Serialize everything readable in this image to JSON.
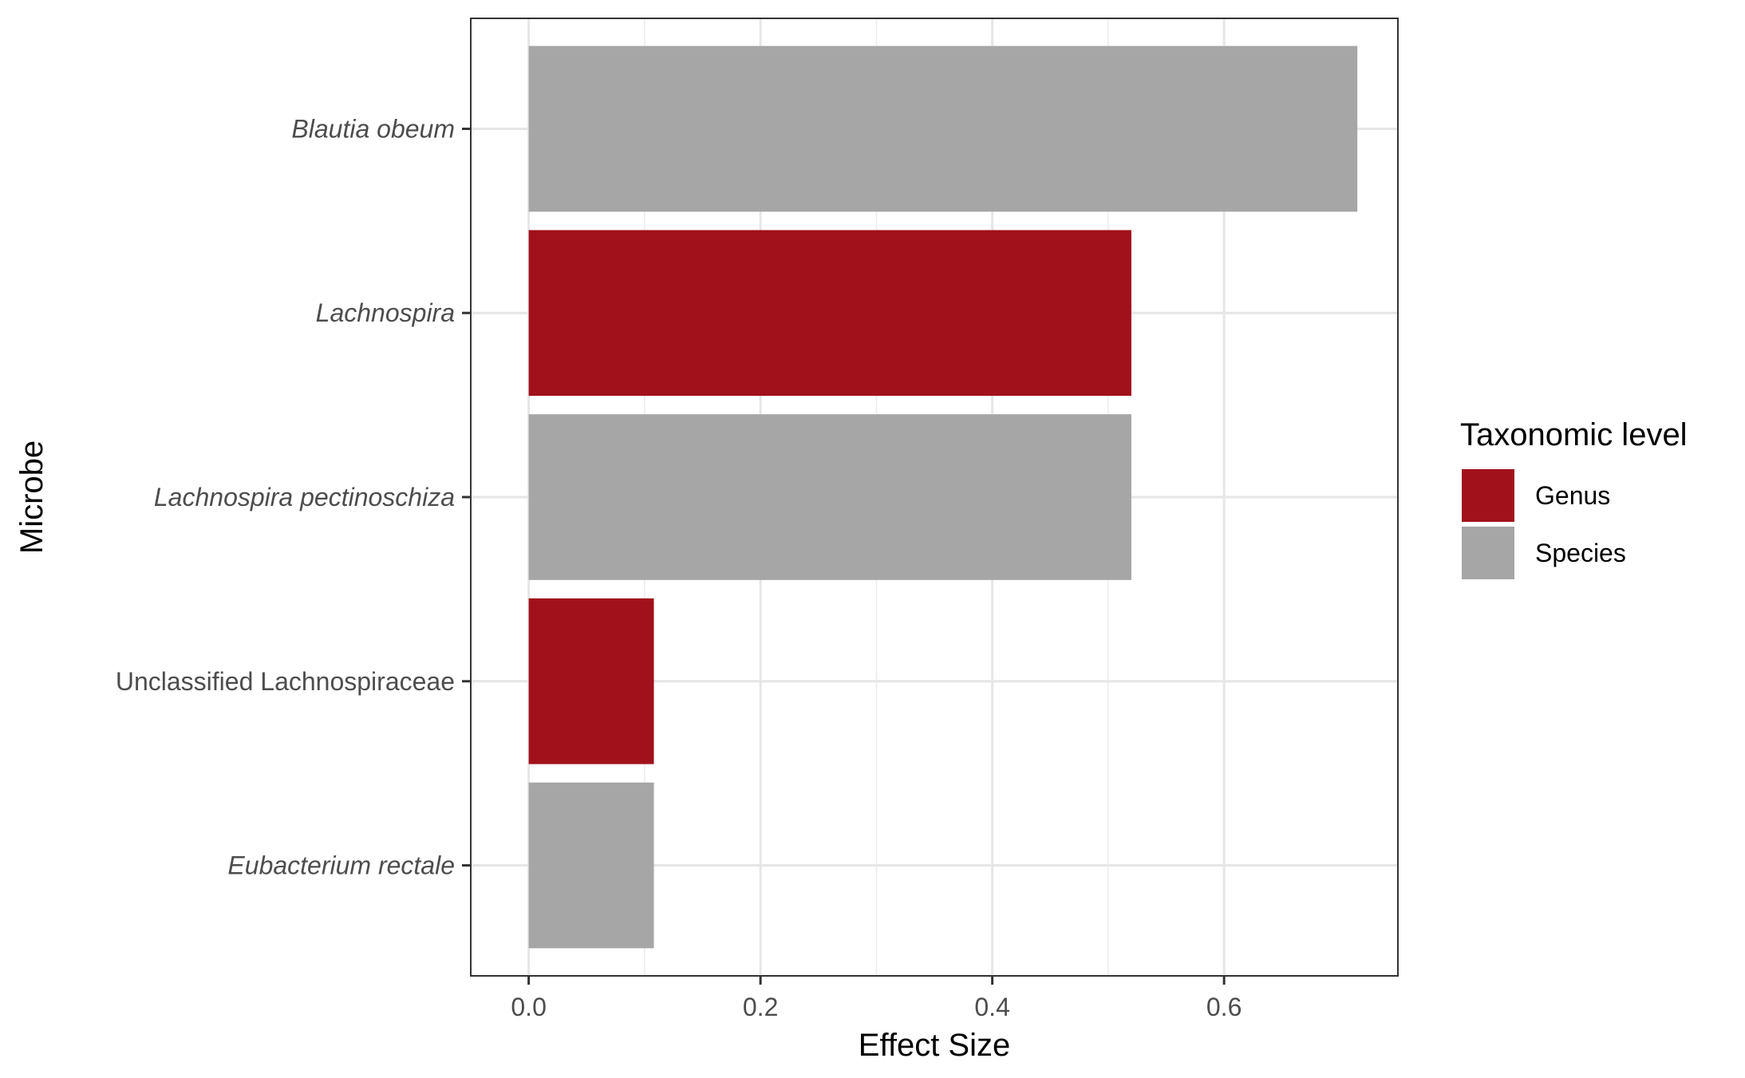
{
  "chart_data": {
    "type": "bar",
    "orientation": "horizontal",
    "title": "",
    "xlabel": "Effect Size",
    "ylabel": "Microbe",
    "xlim": [
      -0.05,
      0.75
    ],
    "x_ticks": [
      0.0,
      0.2,
      0.4,
      0.6
    ],
    "x_tick_labels": [
      "0.0",
      "0.2",
      "0.4",
      "0.6"
    ],
    "grid": true,
    "legend_position": "right",
    "legend_title": "Taxonomic level",
    "legend": [
      {
        "label": "Genus",
        "color": "#a0111b"
      },
      {
        "label": "Species",
        "color": "#a6a6a6"
      }
    ],
    "bars": [
      {
        "label": "Blautia obeum",
        "value": 0.715,
        "level": "Species",
        "italic": true
      },
      {
        "label": "Lachnospira",
        "value": 0.52,
        "level": "Genus",
        "italic": true
      },
      {
        "label": "Lachnospira pectinoschiza",
        "value": 0.52,
        "level": "Species",
        "italic": true
      },
      {
        "label": "Unclassified Lachnospiraceae",
        "value": 0.108,
        "level": "Genus",
        "italic": false
      },
      {
        "label": "Eubacterium rectale",
        "value": 0.108,
        "level": "Species",
        "italic": true
      }
    ]
  }
}
